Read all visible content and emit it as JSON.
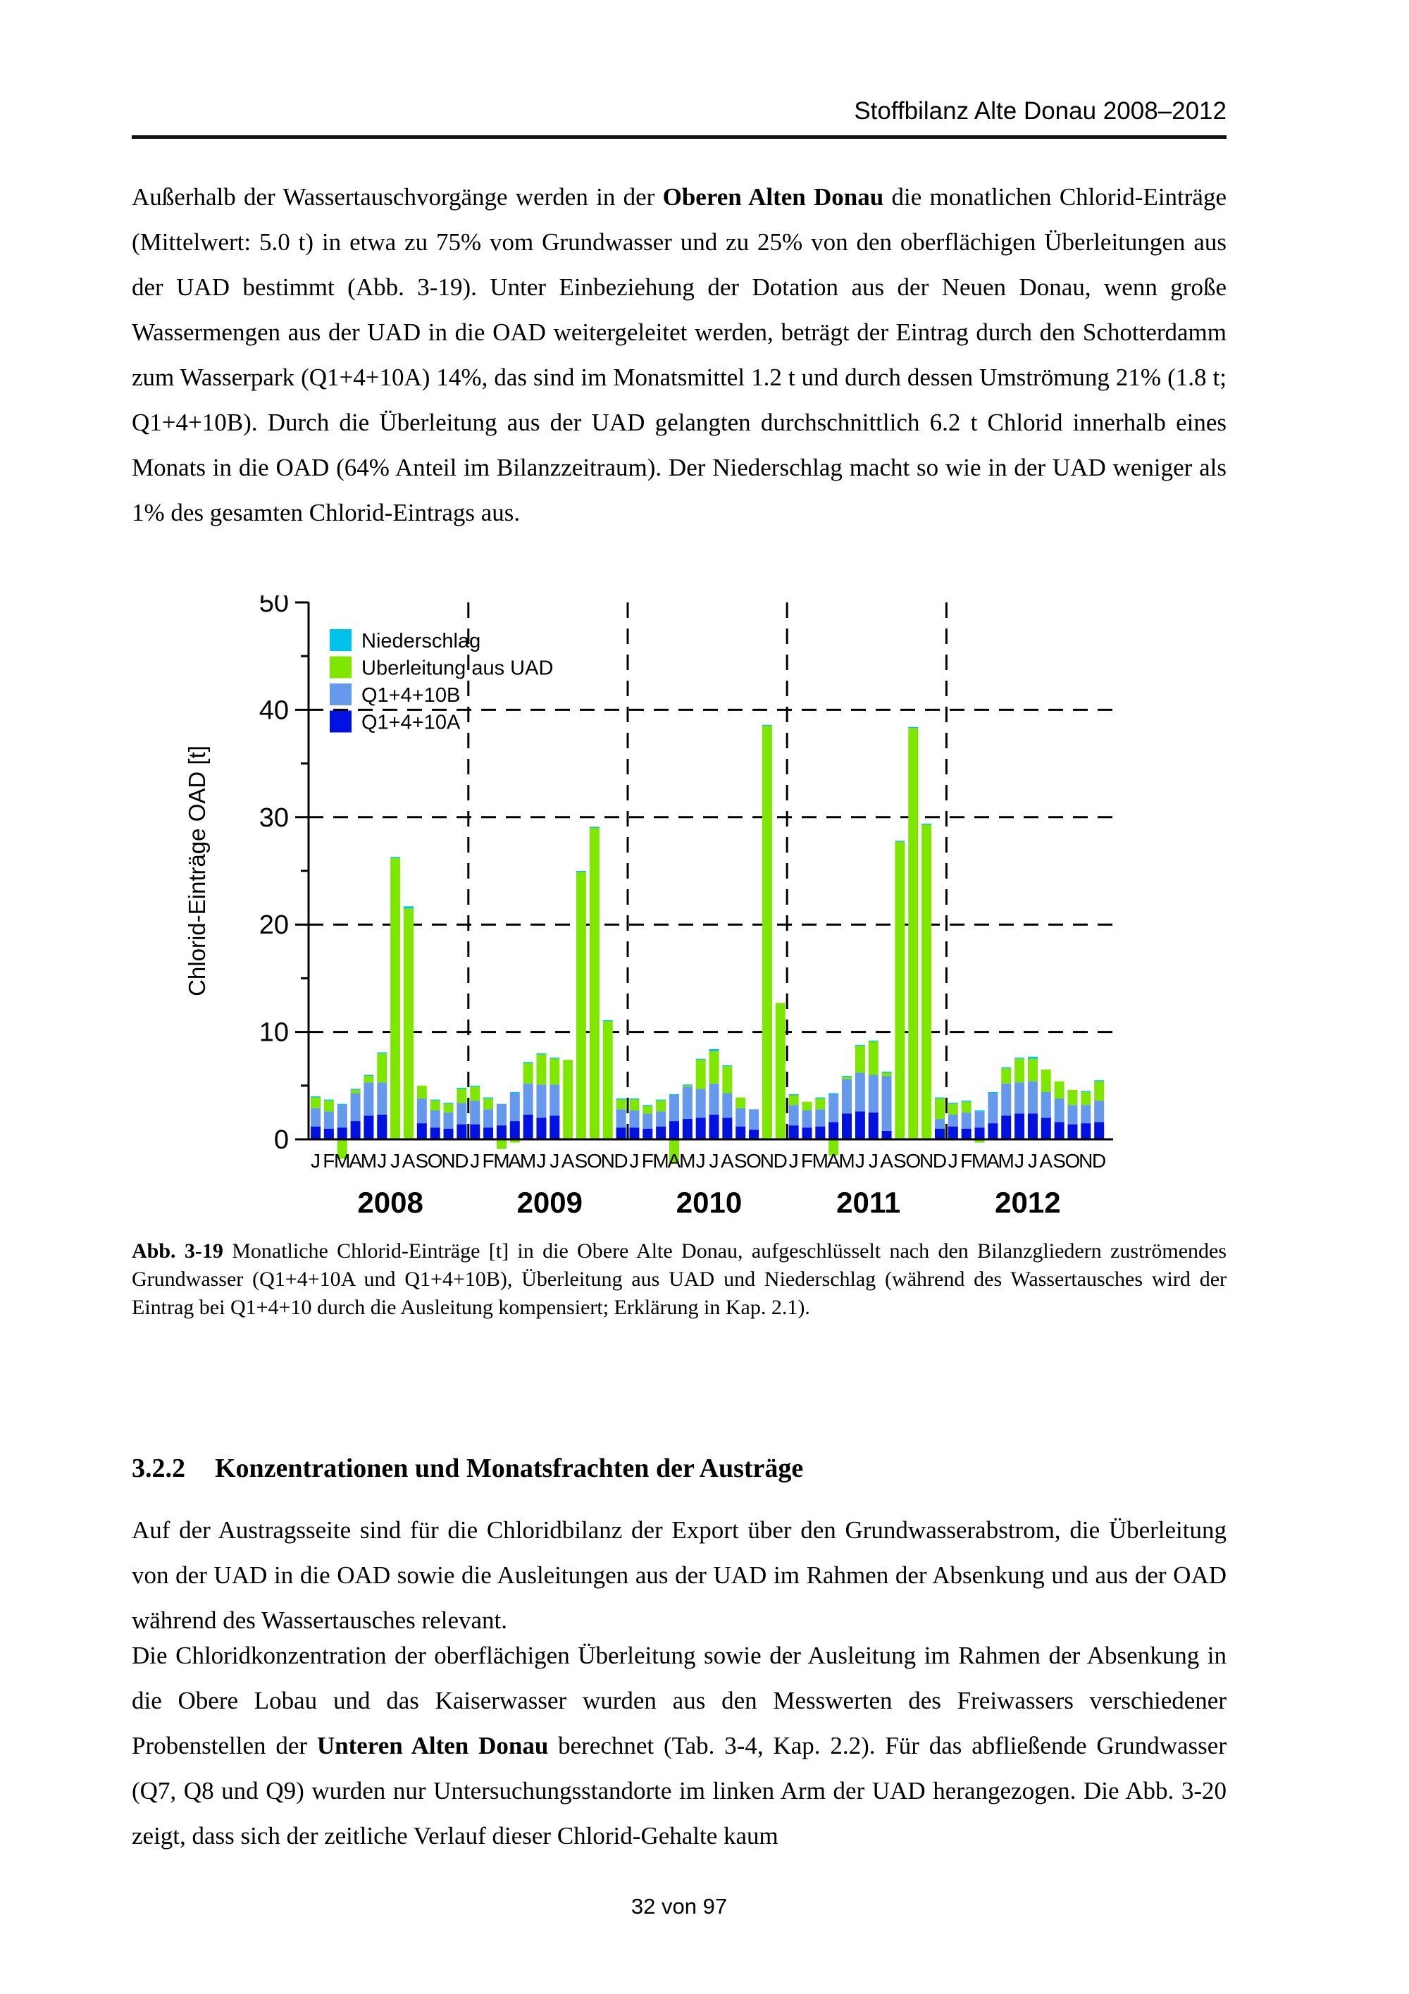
{
  "header": {
    "title": "Stoffbilanz Alte Donau 2008–2012"
  },
  "paragraphs": {
    "p1": [
      {
        "t": "Außerhalb der Wassertauschvorgänge werden in der ",
        "b": false
      },
      {
        "t": "Oberen Alten Donau",
        "b": true
      },
      {
        "t": " die monatlichen Chlorid-Einträge (Mittelwert: 5.0 t) in etwa zu 75% vom Grundwasser und zu 25% von den oberflächigen Überleitungen aus der UAD bestimmt (Abb. 3-19). Unter Einbeziehung der Dotation aus der Neuen Donau, wenn große Wassermengen aus der UAD in die OAD weitergeleitet werden, beträgt der Eintrag durch den Schotterdamm zum Wasserpark (Q1+4+10A) 14%, das sind im Monatsmittel 1.2 t und durch dessen Umströmung 21% (1.8 t; Q1+4+10B). Durch die Überleitung aus der UAD gelangten durchschnittlich 6.2 t Chlorid innerhalb eines Monats in die OAD (64% Anteil im Bilanzzeitraum). Der Niederschlag macht so wie in der UAD weniger als 1% des gesamten Chlorid-Eintrags aus.",
        "b": false
      }
    ],
    "p2": [
      {
        "t": "Auf der Austragsseite sind für die Chloridbilanz der Export über den Grundwasserabstrom, die Überleitung von der UAD in die OAD sowie die Ausleitungen aus der UAD im Rahmen der Absenkung und aus der OAD während des Wassertausches relevant.",
        "b": false
      }
    ],
    "p3": [
      {
        "t": "Die Chloridkonzentration der oberflächigen Überleitung sowie der Ausleitung im Rahmen der Absenkung in die Obere Lobau und das Kaiserwasser wurden aus den Messwerten des Freiwassers verschiedener Probenstellen der ",
        "b": false
      },
      {
        "t": "Unteren Alten Donau",
        "b": true
      },
      {
        "t": " berechnet (Tab. 3-4, Kap. 2.2). Für das abfließende Grundwasser (Q7, Q8 und Q9) wurden nur Untersuchungsstandorte im linken Arm der UAD herangezogen. Die Abb. 3-20 zeigt, dass sich der zeitliche Verlauf dieser Chlorid-Gehalte kaum",
        "b": false
      }
    ]
  },
  "figure": {
    "caption": [
      {
        "t": "Abb. 3-19 ",
        "b": true
      },
      {
        "t": "Monatliche Chlorid-Einträge [t] in die Obere Alte Donau, aufgeschlüsselt nach den Bilanzgliedern zuströmendes Grundwasser (Q1+4+10A und Q1+4+10B), Überleitung aus UAD und Niederschlag (während des Wassertausches wird der Eintrag bei Q1+4+10 durch die Ausleitung kompensiert; Erklärung in Kap. 2.1).",
        "b": false
      }
    ]
  },
  "section": {
    "number": "3.2.2",
    "title": "Konzentrationen und Monatsfrachten der Austräge"
  },
  "footer": {
    "page": "32 von 97"
  },
  "chart_data": {
    "type": "bar",
    "stacked": true,
    "ylabel": "Chlorid-Einträge OAD [t]",
    "ylim": [
      0,
      50
    ],
    "yticks": [
      0,
      10,
      20,
      30,
      40,
      50
    ],
    "grid": "dashed horizontal gridlines at 10,20,30,40; dashed vertical separators between years",
    "legend_position": "top-left inside plot",
    "years": [
      "2008",
      "2009",
      "2010",
      "2011",
      "2012"
    ],
    "month_letters": "JFMAMJJASOND",
    "colors": {
      "niederschlag": "#00c3ea",
      "ueberleitung": "#7fe600",
      "q1410b": "#6699ec",
      "q1410a": "#0011e0"
    },
    "legend": [
      {
        "label": "Niederschlag",
        "color": "#00c3ea"
      },
      {
        "label": "Uberleitung aus UAD",
        "color": "#7fe600"
      },
      {
        "label": "Q1+4+10B",
        "color": "#6699ec"
      },
      {
        "label": "Q1+4+10A",
        "color": "#0011e0"
      }
    ],
    "series": [
      {
        "name": "Q1+4+10A",
        "color": "#0011e0",
        "values": [
          1.2,
          1.0,
          1.1,
          1.7,
          2.2,
          2.3,
          0,
          0,
          1.5,
          1.1,
          1.0,
          1.4,
          1.4,
          1.1,
          1.3,
          1.7,
          2.3,
          2.0,
          2.2,
          0,
          0,
          0,
          0,
          1.1,
          1.1,
          1.0,
          1.2,
          1.7,
          1.9,
          2.0,
          2.3,
          2.0,
          1.2,
          0.9,
          0,
          0,
          1.3,
          1.1,
          1.2,
          1.6,
          2.4,
          2.6,
          2.5,
          0.8,
          0,
          0,
          0,
          1.0,
          1.2,
          1.0,
          1.1,
          1.5,
          2.2,
          2.4,
          2.4,
          2.0,
          1.6,
          1.4,
          1.5,
          1.6
        ]
      },
      {
        "name": "Q1+4+10B",
        "color": "#6699ec",
        "values": [
          1.7,
          1.6,
          2.1,
          2.6,
          3.1,
          3.0,
          0,
          0,
          2.3,
          1.6,
          1.5,
          2.0,
          2.2,
          1.7,
          2.0,
          2.6,
          2.9,
          3.1,
          2.9,
          0,
          0,
          0,
          0,
          1.7,
          1.6,
          1.4,
          1.4,
          2.4,
          3.0,
          2.7,
          2.9,
          2.3,
          1.7,
          1.9,
          0,
          0,
          1.9,
          1.6,
          1.6,
          2.6,
          3.2,
          3.6,
          3.5,
          5.1,
          0,
          0,
          0,
          0.9,
          1.1,
          1.5,
          1.5,
          2.8,
          3.0,
          2.9,
          3.0,
          2.4,
          2.2,
          1.8,
          1.7,
          2.0
        ]
      },
      {
        "name": "Uberleitung aus UAD",
        "color": "#7fe600",
        "values": [
          1.0,
          1.0,
          -1.8,
          0.3,
          0.6,
          2.7,
          26.2,
          21.5,
          1.2,
          0.9,
          0.8,
          1.3,
          1.3,
          1.0,
          -0.9,
          -0.3,
          1.9,
          2.8,
          2.4,
          7.4,
          24.9,
          29.0,
          11.0,
          0.9,
          1.0,
          0.7,
          1.0,
          -2.2,
          0.1,
          2.7,
          3.0,
          2.5,
          1.0,
          0,
          38.5,
          12.7,
          0.9,
          0.8,
          1.0,
          -1.5,
          0.2,
          2.5,
          3.1,
          0.3,
          27.7,
          38.3,
          29.3,
          1.9,
          1.0,
          1.0,
          -0.3,
          0,
          1.4,
          2.2,
          2.1,
          2.1,
          1.6,
          1.4,
          1.2,
          1.8
        ]
      },
      {
        "name": "Niederschlag",
        "color": "#00c3ea",
        "values": [
          0.1,
          0.1,
          0.1,
          0.1,
          0.1,
          0.1,
          0.1,
          0.2,
          0,
          0.1,
          0.1,
          0.1,
          0.1,
          0.1,
          0,
          0.1,
          0.1,
          0.1,
          0.1,
          0,
          0.1,
          0.1,
          0.1,
          0.1,
          0.1,
          0.1,
          0.1,
          0.1,
          0.1,
          0.1,
          0.2,
          0.1,
          0,
          0,
          0.1,
          0,
          0.1,
          0,
          0.1,
          0.1,
          0.1,
          0.1,
          0.1,
          0.1,
          0.1,
          0.1,
          0.1,
          0.1,
          0.1,
          0.1,
          0.1,
          0.1,
          0.1,
          0.1,
          0.2,
          0,
          0,
          0,
          0.1,
          0.1
        ]
      }
    ]
  }
}
